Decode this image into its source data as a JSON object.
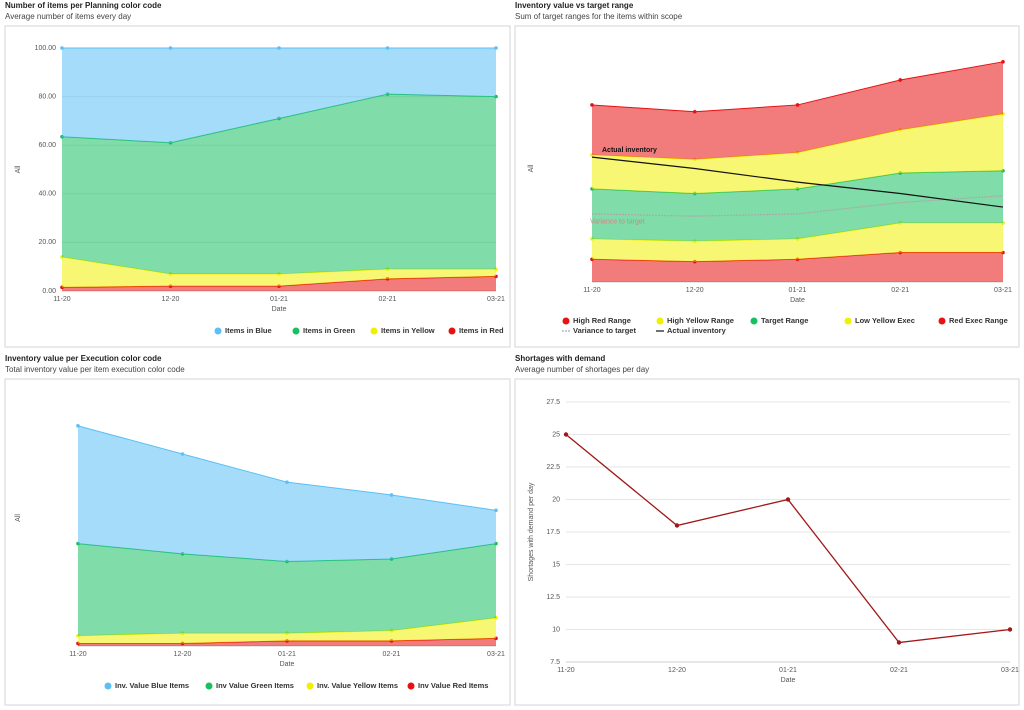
{
  "chart_data": [
    {
      "type": "area",
      "title": "Number of items per Planning color code",
      "subtitle": "Average number of items every day",
      "x_label": "Date",
      "y_label": "All",
      "categories": [
        "11-20",
        "12-20",
        "01-21",
        "02-21",
        "03-21"
      ],
      "ylim": [
        0,
        100
      ],
      "grid": true,
      "yticks": [
        {
          "value": 0,
          "label": "0.00"
        },
        {
          "value": 20,
          "label": "20.00"
        },
        {
          "value": 40,
          "label": "40.00"
        },
        {
          "value": 60,
          "label": "60.00"
        },
        {
          "value": 80,
          "label": "80.00"
        },
        {
          "value": 100,
          "label": "100.00"
        }
      ],
      "series": [
        {
          "name": "Items in Blue",
          "color": "#5bc0f5",
          "values": [
            36.5,
            39,
            29,
            19,
            20
          ]
        },
        {
          "name": "Items in Green",
          "color": "#18c060",
          "values": [
            49.5,
            54,
            64,
            72,
            71
          ]
        },
        {
          "name": "Items in Yellow",
          "color": "#f0f000",
          "values": [
            12.5,
            5,
            5,
            4,
            3
          ]
        },
        {
          "name": "Items in Red",
          "color": "#e81010",
          "values": [
            1.5,
            2,
            2,
            5,
            6
          ]
        }
      ]
    },
    {
      "type": "area",
      "title": "Inventory value vs target range",
      "subtitle": "Sum of target ranges for the items within scope",
      "x_label": "Date",
      "y_label": "All",
      "categories": [
        "11-20",
        "12-20",
        "01-21",
        "02-21",
        "03-21"
      ],
      "ylim": [
        0,
        100
      ],
      "annotations": [
        "Actual inventory",
        "Variance to target"
      ],
      "series": [
        {
          "name": "High Red Range",
          "color": "#e81010",
          "values": [
            22,
            21,
            21,
            22,
            23
          ]
        },
        {
          "name": "High Yellow Range",
          "color": "#f0f000",
          "values": [
            15,
            15,
            16,
            19,
            25
          ]
        },
        {
          "name": "Target Range",
          "color": "#18c060",
          "values": [
            22,
            21,
            22,
            22,
            23
          ]
        },
        {
          "name": "Low Yellow Exec",
          "color": "#f0f000",
          "values": [
            9,
            9,
            9,
            13,
            13
          ]
        },
        {
          "name": "Red Exec Range",
          "color": "#e81010",
          "values": [
            10,
            9,
            10,
            13,
            13
          ]
        },
        {
          "name": "Variance to target",
          "color": "#aaaaaa",
          "type": "line",
          "dashed": true,
          "values": [
            30,
            29,
            30,
            35,
            38
          ]
        },
        {
          "name": "Actual inventory",
          "color": "#111111",
          "type": "line",
          "values": [
            55,
            50,
            44,
            39,
            33
          ]
        }
      ]
    },
    {
      "type": "area",
      "title": "Inventory value per Execution color code",
      "subtitle": "Total inventory value per item execution color code",
      "x_label": "Date",
      "y_label": "All",
      "categories": [
        "11-20",
        "12-20",
        "01-21",
        "02-21",
        "03-21"
      ],
      "ylim": [
        0,
        100
      ],
      "series": [
        {
          "name": "Inv. Value Blue Items",
          "color": "#5bc0f5",
          "values": [
            46,
            39,
            31,
            25,
            13
          ]
        },
        {
          "name": "Inv Value Green Items",
          "color": "#18c060",
          "values": [
            36,
            31,
            28,
            28,
            29
          ]
        },
        {
          "name": "Inv. Value Yellow Items",
          "color": "#f0f000",
          "values": [
            3,
            4,
            3,
            4,
            8
          ]
        },
        {
          "name": "Inv Value Red Items",
          "color": "#e81010",
          "values": [
            1,
            1,
            2,
            2,
            3
          ]
        }
      ]
    },
    {
      "type": "line",
      "title": "Shortages with demand",
      "subtitle": "Average number of shortages per day",
      "x_label": "Date",
      "y_label": "Shortages with demand per day",
      "categories": [
        "11-20",
        "12-20",
        "01-21",
        "02-21",
        "03-21"
      ],
      "ylim": [
        7.5,
        27.5
      ],
      "yticks": [
        7.5,
        10,
        12.5,
        15,
        17.5,
        20,
        22.5,
        25,
        27.5
      ],
      "grid": true,
      "series": [
        {
          "color": "#a01818",
          "values": [
            25,
            18,
            20,
            9,
            10
          ]
        }
      ]
    }
  ]
}
